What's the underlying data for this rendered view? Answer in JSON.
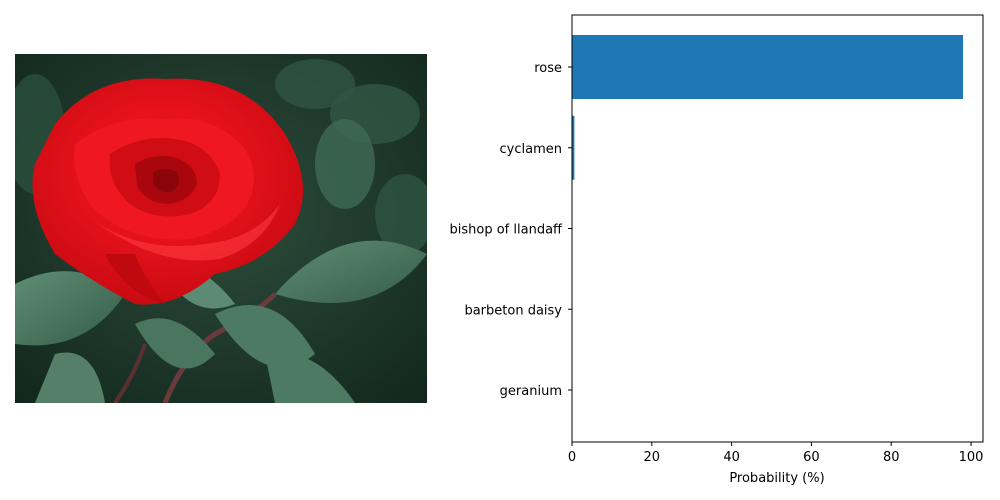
{
  "photo": {
    "subject": "red-rose-photo",
    "colors": {
      "background": "#1f3a2c",
      "leaf": "#4d7a62",
      "leaf_dark": "#2c5040",
      "petal": "#e8121a",
      "petal_dark": "#a8070c",
      "petal_light": "#ff3a3f",
      "stem": "#6b3a3a"
    }
  },
  "chart_data": {
    "type": "bar",
    "orientation": "horizontal",
    "categories": [
      "rose",
      "cyclamen",
      "bishop of llandaff",
      "barbeton daisy",
      "geranium"
    ],
    "values": [
      98.0,
      0.6,
      0.1,
      0.05,
      0.03
    ],
    "xlabel": "Probability (%)",
    "ylabel": "",
    "title": "",
    "xlim": [
      0,
      103
    ],
    "xticks": [
      0,
      20,
      40,
      60,
      80,
      100
    ],
    "grid": false,
    "bar_color": "#1f77b4"
  }
}
